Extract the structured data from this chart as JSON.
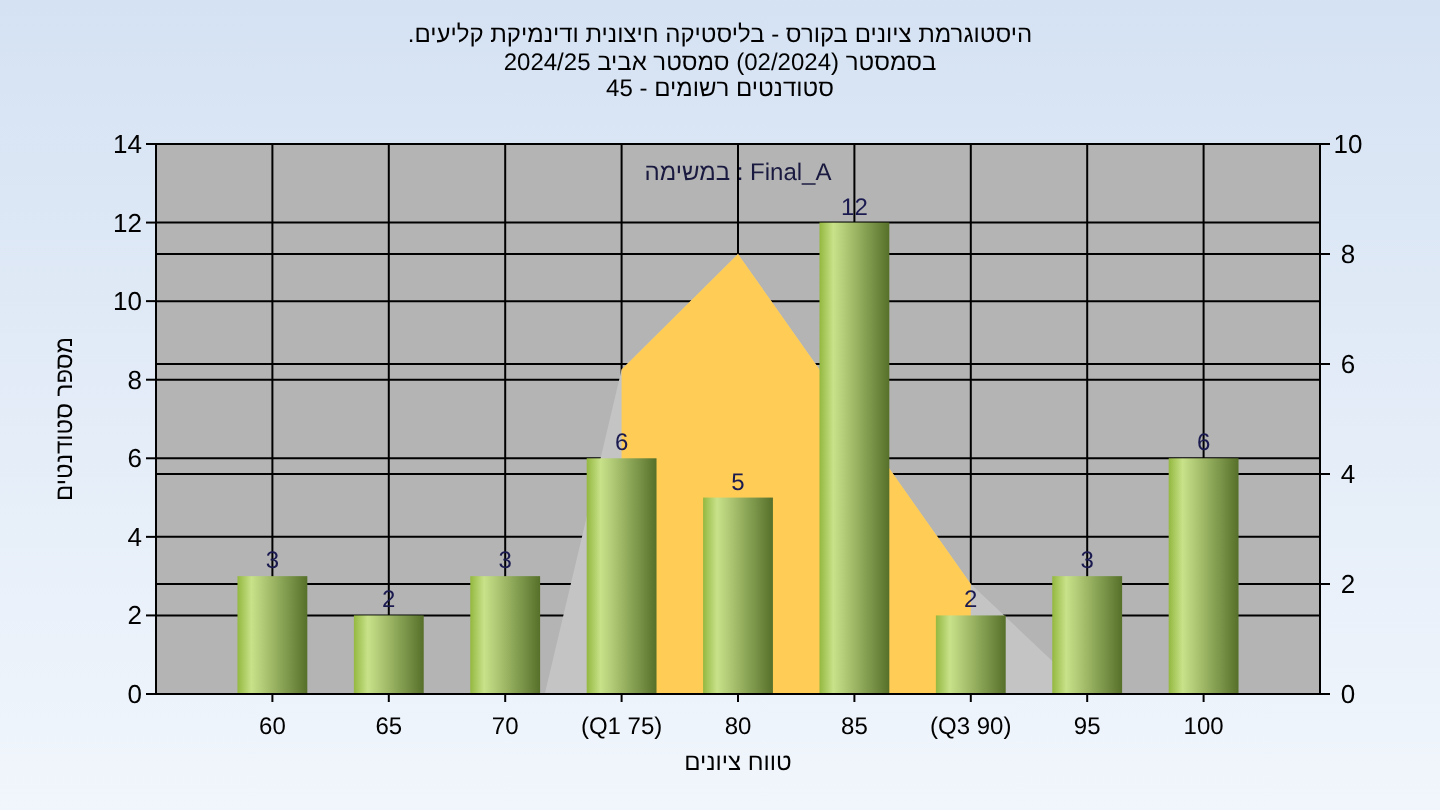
{
  "chart_data": {
    "type": "bar",
    "title": "היסטוגרמת ציונים בקורס - בליסטיקה חיצונית ודינמיקת קליעים.",
    "subtitle": "בסמסטר (02/2024) סמסטר אביב 2024/25\nסטודנטים רשומים - 45",
    "xlabel": "טווח ציונים",
    "ylabel": "מספר סטודנטים",
    "annotations": [
      "במשימה : Final_A"
    ],
    "x": [
      60,
      65,
      70,
      75,
      80,
      85,
      90,
      95,
      100
    ],
    "series": [
      {
        "type": "area",
        "axis": "y2",
        "color": "#c4c4c4",
        "x": [
          71.7,
          75,
          80,
          90,
          95
        ],
        "values": [
          0,
          5.9,
          8.0,
          2.0,
          0
        ]
      },
      {
        "type": "area",
        "axis": "y2",
        "color": "#ffcc55",
        "x": [
          75,
          80,
          90
        ],
        "values": [
          5.9,
          8.0,
          2.0
        ]
      },
      {
        "color": "#94b840",
        "values": [
          3,
          2,
          3,
          6,
          5,
          12,
          2,
          3,
          6
        ],
        "value_labels": [
          "3",
          "2",
          "3",
          "6",
          "5",
          "12",
          "2",
          "3",
          "6"
        ]
      }
    ],
    "xlim": [
      55,
      105
    ],
    "xticks": [
      60,
      65,
      70,
      {
        "value": 75,
        "label": "(Q1 75)"
      },
      80,
      85,
      {
        "value": 90,
        "label": "(Q3 90)"
      },
      95,
      100
    ],
    "ylim": [
      0,
      14
    ],
    "yticks": [
      0,
      2,
      4,
      6,
      8,
      10,
      12,
      14
    ],
    "y2lim": [
      0,
      10
    ],
    "y2ticks": [
      0,
      2,
      4,
      6,
      8,
      10
    ],
    "grid": true
  }
}
